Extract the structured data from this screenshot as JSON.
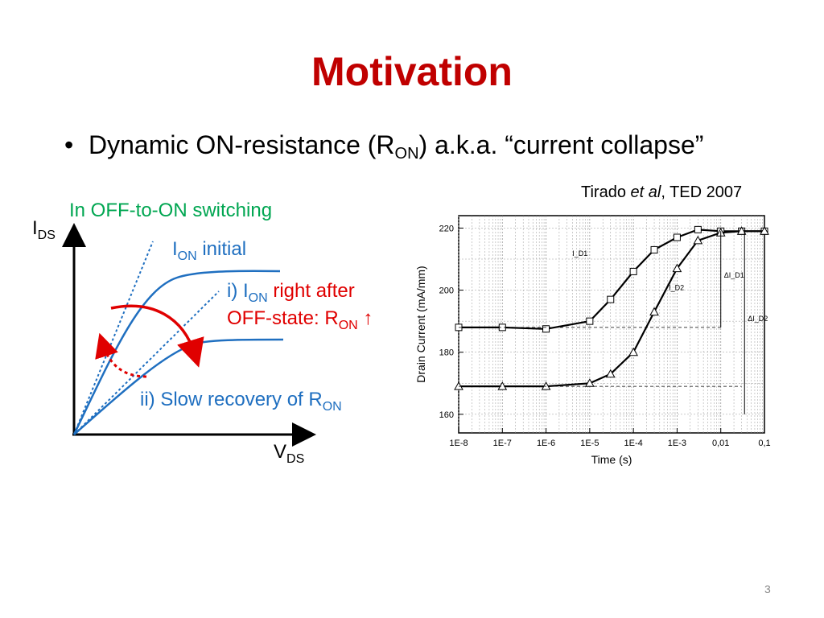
{
  "slide": {
    "title": "Motivation",
    "bullet": {
      "text_a": "Dynamic ON-resistance (R",
      "sub": "ON",
      "text_b": ") a.k.a. “current collapse”"
    },
    "citation": {
      "author": "Tirado ",
      "etal": "et al",
      "rest": ", TED 2007"
    },
    "page_number": "3"
  },
  "sketch": {
    "caption": "In OFF-to-ON switching",
    "y_axis": {
      "main": "I",
      "sub": "DS"
    },
    "x_axis": {
      "main": "V",
      "sub": "DS"
    },
    "label_initial": {
      "main": "I",
      "sub": "ON",
      "rest": " initial"
    },
    "label_after": {
      "prefix": "i) I",
      "sub": "ON",
      "red1": " right after",
      "red2": "OFF-state: R",
      "red2_sub": "ON",
      "arrow": " ↑"
    },
    "label_recovery": {
      "main": "ii) Slow recovery of R",
      "sub": "ON"
    }
  },
  "chart_data": {
    "type": "line",
    "xlabel": "Time (s)",
    "ylabel": "Drain Current (mA/mm)",
    "x_scale": "log",
    "x_ticks": [
      "1E-8",
      "1E-7",
      "1E-6",
      "1E-5",
      "1E-4",
      "1E-3",
      "0,01",
      "0,1"
    ],
    "y_ticks": [
      "160",
      "180",
      "200",
      "220"
    ],
    "ylim": [
      154,
      224
    ],
    "grid": true,
    "series": [
      {
        "name": "I_D1",
        "x": [
          1e-08,
          1e-07,
          1e-06,
          1e-05,
          3e-05,
          0.0001,
          0.0003,
          0.001,
          0.003,
          0.01,
          0.03,
          0.1
        ],
        "y": [
          188,
          188,
          187.5,
          190,
          197,
          206,
          213,
          217,
          219.5,
          219,
          219,
          219
        ]
      },
      {
        "name": "I_D2",
        "x": [
          1e-08,
          1e-07,
          1e-06,
          1e-05,
          3e-05,
          0.0001,
          0.0003,
          0.001,
          0.003,
          0.01,
          0.03,
          0.1
        ],
        "y": [
          169,
          169,
          169,
          170,
          173,
          180,
          193,
          207,
          216,
          218.5,
          219,
          219
        ]
      }
    ],
    "annotations": [
      "I_D1",
      "I_D2",
      "ΔI_D1",
      "ΔI_D2"
    ],
    "colors": {
      "trace": "#000000",
      "grid": "#999999"
    }
  }
}
